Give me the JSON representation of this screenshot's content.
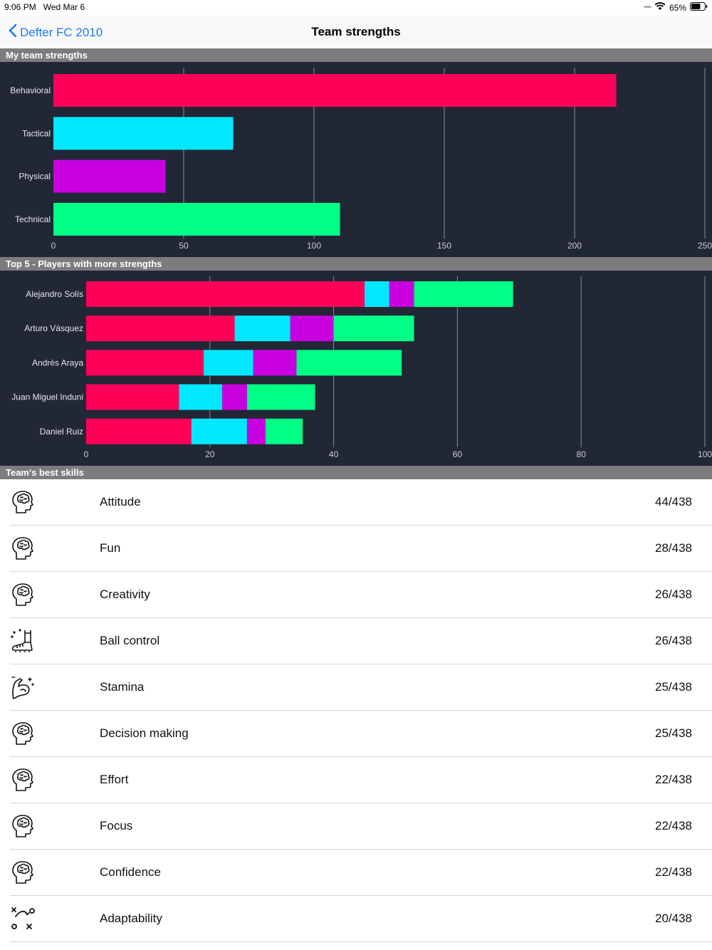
{
  "status": {
    "time": "9:06 PM",
    "date": "Wed Mar 6",
    "battery": "65%"
  },
  "nav": {
    "back_label": "Defter FC 2010",
    "title": "Team strengths"
  },
  "colors": {
    "behavioral": "#ff0059",
    "tactical": "#00e8ff",
    "physical": "#c800e0",
    "technical": "#00ff85",
    "chart_bg": "#222736"
  },
  "sections": {
    "my_team": "My team strengths",
    "top5": "Top 5 - Players with more strengths",
    "best_skills": "Team's best skills"
  },
  "chart_data": [
    {
      "type": "bar",
      "orientation": "horizontal",
      "categories": [
        "Behavioral",
        "Tactical",
        "Physical",
        "Technical"
      ],
      "values": [
        216,
        69,
        43,
        110
      ],
      "xlim": [
        0,
        250
      ],
      "xticks": [
        "0",
        "50",
        "100",
        "150",
        "200",
        "250"
      ],
      "grid": true
    },
    {
      "type": "bar",
      "orientation": "horizontal",
      "stacked": true,
      "categories": [
        "Alejandro Solís",
        "Arturo Vásquez",
        "Andrés Araya",
        "Juan Miguel Induni",
        "Daniel Ruiz"
      ],
      "series": [
        {
          "values": [
            45,
            24,
            19,
            15,
            17
          ]
        },
        {
          "values": [
            4,
            9,
            8,
            7,
            9
          ]
        },
        {
          "values": [
            4,
            7,
            7,
            4,
            3
          ]
        },
        {
          "values": [
            16,
            13,
            17,
            11,
            6
          ]
        }
      ],
      "xlim": [
        0,
        100
      ],
      "xticks": [
        "0",
        "20",
        "40",
        "60",
        "80",
        "100"
      ],
      "grid": true
    }
  ],
  "skills": [
    {
      "icon": "brain-head-icon",
      "name": "Attitude",
      "score": "44/438"
    },
    {
      "icon": "brain-head-icon",
      "name": "Fun",
      "score": "28/438"
    },
    {
      "icon": "brain-head-icon",
      "name": "Creativity",
      "score": "26/438"
    },
    {
      "icon": "football-boot-icon",
      "name": "Ball control",
      "score": "26/438"
    },
    {
      "icon": "flexed-arm-icon",
      "name": "Stamina",
      "score": "25/438"
    },
    {
      "icon": "brain-head-icon",
      "name": "Decision making",
      "score": "25/438"
    },
    {
      "icon": "brain-head-icon",
      "name": "Effort",
      "score": "22/438"
    },
    {
      "icon": "brain-head-icon",
      "name": "Focus",
      "score": "22/438"
    },
    {
      "icon": "brain-head-icon",
      "name": "Confidence",
      "score": "22/438"
    },
    {
      "icon": "tactics-board-icon",
      "name": "Adaptability",
      "score": "20/438"
    }
  ]
}
